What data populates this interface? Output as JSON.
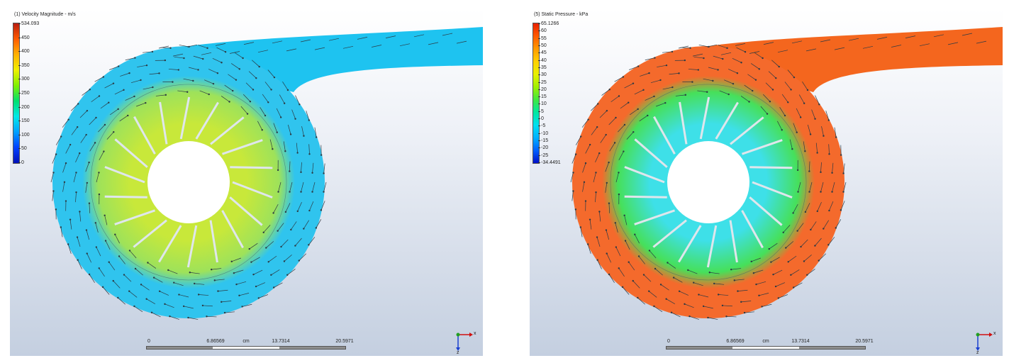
{
  "panels": [
    {
      "title": "(1) Velocity Magnitude - m/s",
      "legend": {
        "max": "534.093",
        "ticks": [
          "450",
          "400",
          "350",
          "300",
          "250",
          "200",
          "150",
          "100",
          "50",
          "0"
        ],
        "min": ""
      },
      "colorscale": [
        "#b81c10",
        "#ff5a00",
        "#ffb000",
        "#f0f000",
        "#80f000",
        "#00e070",
        "#00e8e8",
        "#00a0ff",
        "#0040ff",
        "#0010b8"
      ],
      "field": {
        "body_color": "#30c4ee",
        "ring_color": "#9ee25a",
        "blade_color": "#c8e83a",
        "outlet_color": "#1ec3f0"
      },
      "scale": {
        "labels": [
          "0",
          "6.86569",
          "13.7314",
          "20.5971"
        ],
        "unit": "cm"
      },
      "triad": {
        "x": "x",
        "z": "z"
      }
    },
    {
      "title": "(5) Static Pressure - kPa",
      "legend": {
        "max": "65.1266",
        "ticks": [
          "60",
          "55",
          "50",
          "45",
          "40",
          "35",
          "30",
          "25",
          "20",
          "15",
          "10",
          "5",
          "0",
          "-5",
          "-10",
          "-15",
          "-20",
          "-25"
        ],
        "min": "-34.4491"
      },
      "colorscale": [
        "#e82000",
        "#ff5a00",
        "#ff9a00",
        "#ffd000",
        "#e8f000",
        "#a0f000",
        "#40e840",
        "#00e8a0",
        "#00e0f0",
        "#00b0ff",
        "#0060ff",
        "#0010c8"
      ],
      "field": {
        "body_color": "#f46a2c",
        "ring_color": "#46e05a",
        "blade_color": "#3ee0e8",
        "outlet_color": "#f4661e"
      },
      "scale": {
        "labels": [
          "0",
          "6.86569",
          "13.7314",
          "20.5971"
        ],
        "unit": "cm"
      },
      "triad": {
        "x": "x",
        "z": "z"
      }
    }
  ]
}
